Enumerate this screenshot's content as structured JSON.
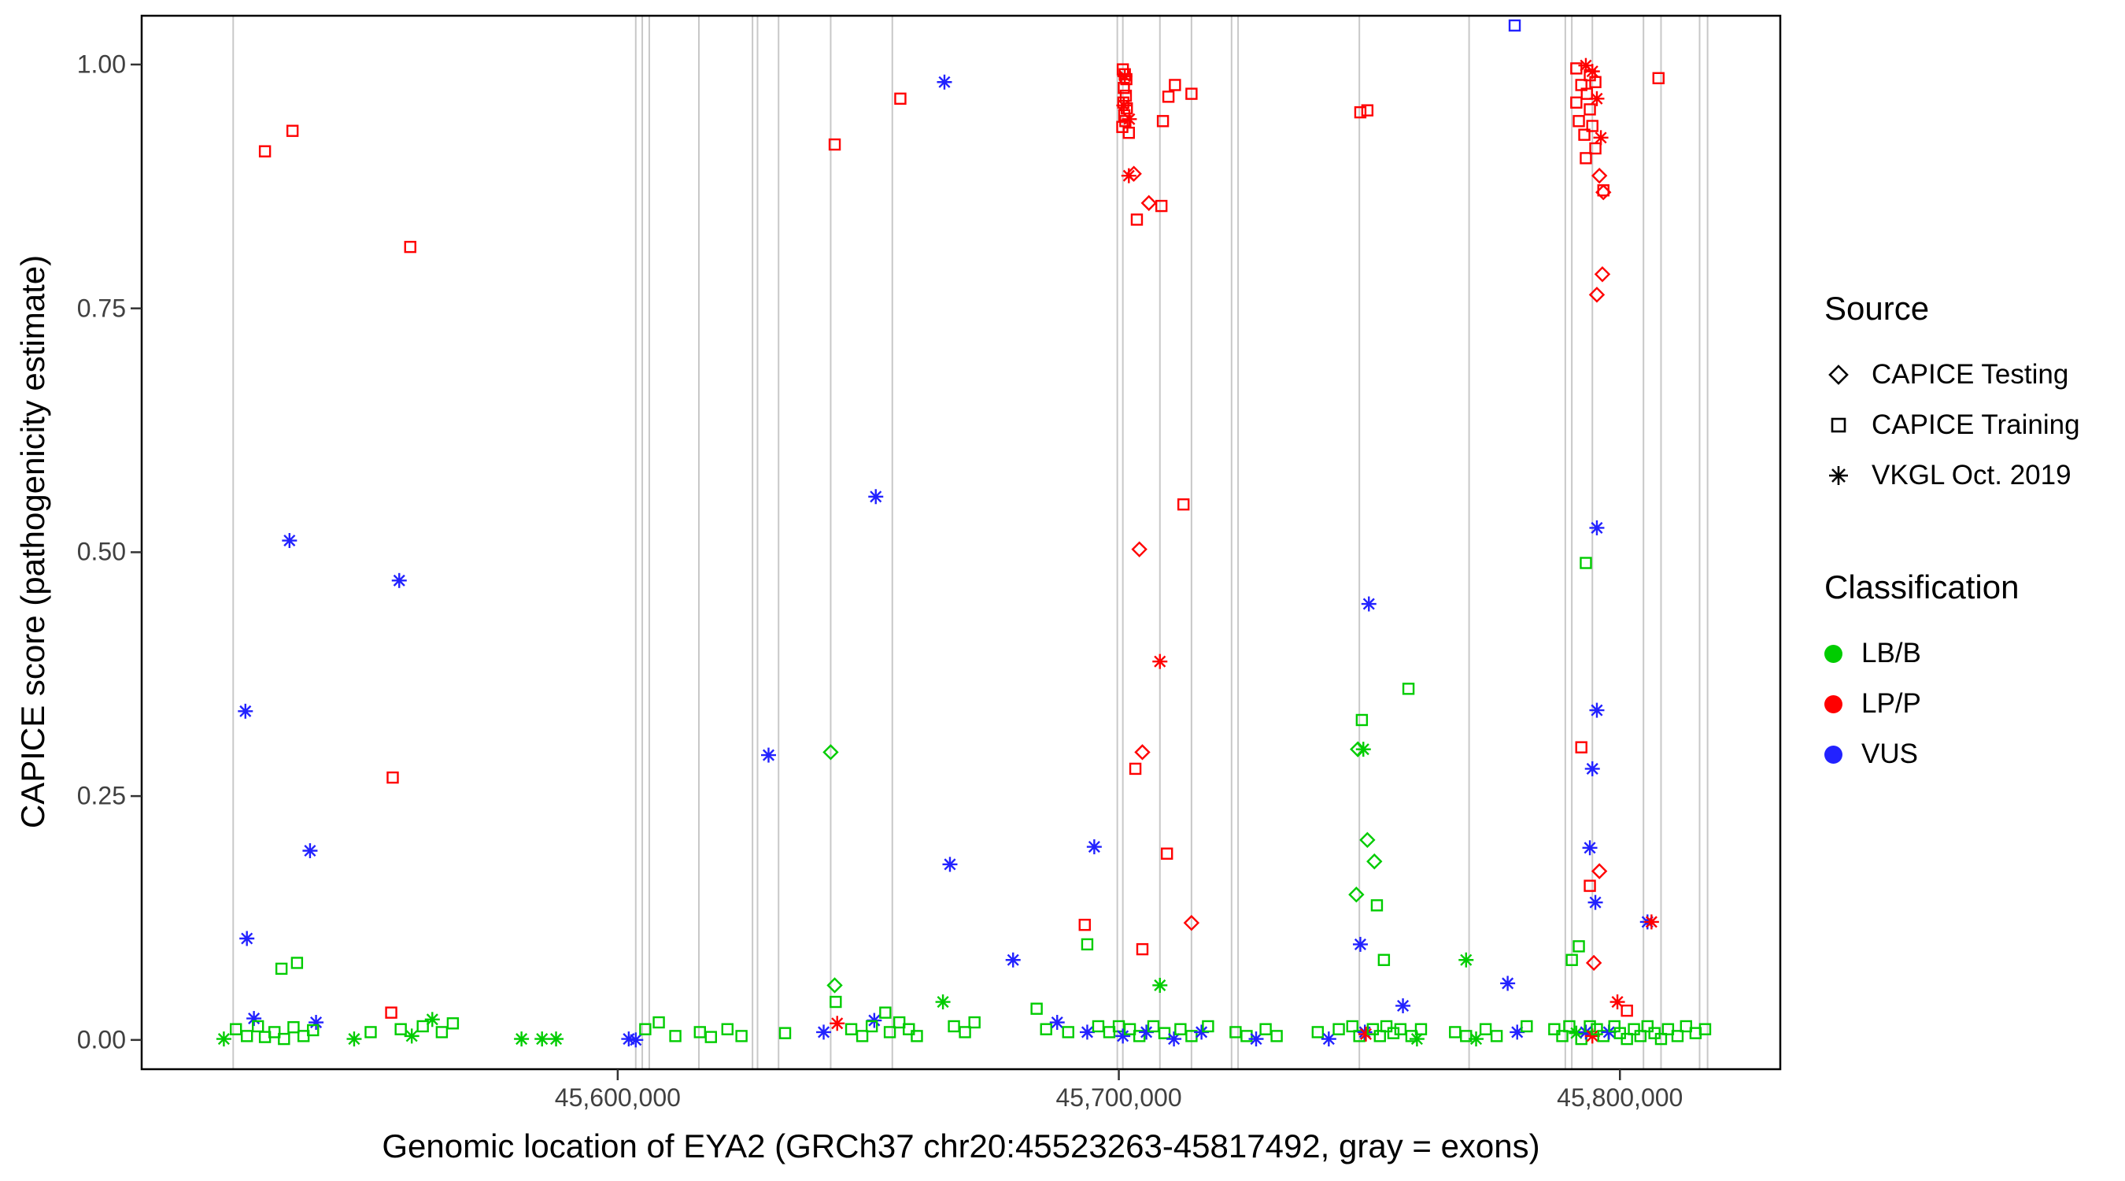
{
  "chart_data": {
    "type": "scatter",
    "title": "",
    "xlabel": "Genomic location of EYA2 (GRCh37 chr20:45523263-45817492, gray = exons)",
    "ylabel": "CAPICE score (pathogenicity estimate)",
    "x_domain": [
      45505000,
      45832000
    ],
    "y_domain": [
      -0.03,
      1.05
    ],
    "x_ticks": [
      {
        "value": 45600000,
        "label": "45,600,000"
      },
      {
        "value": 45700000,
        "label": "45,700,000"
      },
      {
        "value": 45800000,
        "label": "45,800,000"
      }
    ],
    "y_ticks": [
      {
        "value": 0.0,
        "label": "0.00"
      },
      {
        "value": 0.25,
        "label": "0.25"
      },
      {
        "value": 0.5,
        "label": "0.50"
      },
      {
        "value": 0.75,
        "label": "0.75"
      },
      {
        "value": 1.0,
        "label": "1.00"
      }
    ],
    "exon_line_color": "#C8C8C8",
    "exon_lines": [
      45523263,
      45603600,
      45604900,
      45606300,
      45616200,
      45626900,
      45627900,
      45632100,
      45642500,
      45654800,
      45699700,
      45700800,
      45708200,
      45714500,
      45722500,
      45723800,
      45748000,
      45769900,
      45789100,
      45790400,
      45794500,
      45804700,
      45808200,
      45815900,
      45817492
    ],
    "colors": {
      "LB/B": "#00CC00",
      "LP/P": "#FF0000",
      "VUS": "#2222FF"
    },
    "shapes": {
      "CAPICE Testing": "diamond",
      "CAPICE Training": "square",
      "VKGL Oct. 2019": "asterisk"
    },
    "point_format": [
      "genomic_position",
      "capice_score",
      "shape: d=diamond(CAPICE Testing) s=square(CAPICE Training) a=asterisk(VKGL Oct. 2019)",
      "class: g=LB/B r=LP/P b=VUS"
    ],
    "points": [
      [
        45529600,
        0.911,
        "s",
        "r"
      ],
      [
        45535100,
        0.932,
        "s",
        "r"
      ],
      [
        45558600,
        0.813,
        "s",
        "r"
      ],
      [
        45534500,
        0.512,
        "a",
        "b"
      ],
      [
        45556400,
        0.471,
        "a",
        "b"
      ],
      [
        45525700,
        0.337,
        "a",
        "b"
      ],
      [
        45555100,
        0.269,
        "s",
        "r"
      ],
      [
        45538600,
        0.194,
        "a",
        "b"
      ],
      [
        45526000,
        0.104,
        "a",
        "b"
      ],
      [
        45532900,
        0.073,
        "s",
        "g"
      ],
      [
        45536000,
        0.079,
        "s",
        "g"
      ],
      [
        45527400,
        0.022,
        "a",
        "b"
      ],
      [
        45539800,
        0.018,
        "a",
        "b"
      ],
      [
        45521400,
        0.001,
        "a",
        "g"
      ],
      [
        45523800,
        0.011,
        "s",
        "g"
      ],
      [
        45526000,
        0.004,
        "s",
        "g"
      ],
      [
        45528200,
        0.014,
        "s",
        "g"
      ],
      [
        45529600,
        0.003,
        "s",
        "g"
      ],
      [
        45531500,
        0.008,
        "s",
        "g"
      ],
      [
        45533400,
        0.001,
        "s",
        "g"
      ],
      [
        45535300,
        0.013,
        "s",
        "g"
      ],
      [
        45537300,
        0.004,
        "s",
        "g"
      ],
      [
        45539200,
        0.01,
        "s",
        "g"
      ],
      [
        45547400,
        0.001,
        "a",
        "g"
      ],
      [
        45550700,
        0.008,
        "s",
        "g"
      ],
      [
        45554800,
        0.028,
        "s",
        "r"
      ],
      [
        45556700,
        0.011,
        "s",
        "g"
      ],
      [
        45558900,
        0.004,
        "a",
        "g"
      ],
      [
        45561100,
        0.014,
        "s",
        "g"
      ],
      [
        45563000,
        0.021,
        "a",
        "g"
      ],
      [
        45564900,
        0.008,
        "s",
        "g"
      ],
      [
        45567100,
        0.017,
        "s",
        "g"
      ],
      [
        45580800,
        0.001,
        "a",
        "g"
      ],
      [
        45584900,
        0.001,
        "a",
        "g"
      ],
      [
        45587700,
        0.001,
        "a",
        "g"
      ],
      [
        45602200,
        0.001,
        "a",
        "b"
      ],
      [
        45603600,
        0.0,
        "a",
        "b"
      ],
      [
        45605500,
        0.011,
        "s",
        "g"
      ],
      [
        45608200,
        0.018,
        "s",
        "g"
      ],
      [
        45611500,
        0.004,
        "s",
        "g"
      ],
      [
        45616400,
        0.008,
        "s",
        "g"
      ],
      [
        45618600,
        0.003,
        "s",
        "g"
      ],
      [
        45621900,
        0.011,
        "s",
        "g"
      ],
      [
        45624700,
        0.004,
        "s",
        "g"
      ],
      [
        45630100,
        0.292,
        "a",
        "b"
      ],
      [
        45633400,
        0.007,
        "s",
        "g"
      ],
      [
        45643300,
        0.918,
        "s",
        "r"
      ],
      [
        45656400,
        0.965,
        "s",
        "r"
      ],
      [
        45665200,
        0.982,
        "a",
        "b"
      ],
      [
        45651500,
        0.557,
        "a",
        "b"
      ],
      [
        45642500,
        0.295,
        "d",
        "g"
      ],
      [
        45643300,
        0.056,
        "d",
        "g"
      ],
      [
        45643500,
        0.039,
        "s",
        "g"
      ],
      [
        45643800,
        0.017,
        "a",
        "r"
      ],
      [
        45641100,
        0.008,
        "a",
        "b"
      ],
      [
        45651200,
        0.02,
        "a",
        "b"
      ],
      [
        45646600,
        0.011,
        "s",
        "g"
      ],
      [
        45648800,
        0.004,
        "s",
        "g"
      ],
      [
        45650700,
        0.014,
        "s",
        "g"
      ],
      [
        45653400,
        0.028,
        "s",
        "g"
      ],
      [
        45654300,
        0.008,
        "s",
        "g"
      ],
      [
        45656200,
        0.018,
        "s",
        "g"
      ],
      [
        45658100,
        0.011,
        "s",
        "g"
      ],
      [
        45659700,
        0.004,
        "s",
        "g"
      ],
      [
        45664900,
        0.039,
        "a",
        "g"
      ],
      [
        45667100,
        0.014,
        "s",
        "g"
      ],
      [
        45669300,
        0.008,
        "s",
        "g"
      ],
      [
        45671200,
        0.018,
        "s",
        "g"
      ],
      [
        45666300,
        0.18,
        "a",
        "b"
      ],
      [
        45678900,
        0.082,
        "a",
        "b"
      ],
      [
        45683600,
        0.032,
        "s",
        "g"
      ],
      [
        45685500,
        0.011,
        "s",
        "g"
      ],
      [
        45687700,
        0.018,
        "a",
        "b"
      ],
      [
        45689900,
        0.008,
        "s",
        "g"
      ],
      [
        45695100,
        0.198,
        "a",
        "b"
      ],
      [
        45693200,
        0.118,
        "s",
        "r"
      ],
      [
        45693700,
        0.098,
        "s",
        "g"
      ],
      [
        45693700,
        0.008,
        "a",
        "b"
      ],
      [
        45695900,
        0.014,
        "s",
        "g"
      ],
      [
        45700800,
        0.995,
        "s",
        "r"
      ],
      [
        45701200,
        0.99,
        "s",
        "r"
      ],
      [
        45701500,
        0.985,
        "s",
        "r"
      ],
      [
        45701000,
        0.976,
        "s",
        "r"
      ],
      [
        45701400,
        0.968,
        "s",
        "r"
      ],
      [
        45700900,
        0.961,
        "s",
        "r"
      ],
      [
        45701600,
        0.955,
        "s",
        "r"
      ],
      [
        45701100,
        0.948,
        "s",
        "r"
      ],
      [
        45701300,
        0.942,
        "s",
        "r"
      ],
      [
        45700700,
        0.936,
        "s",
        "r"
      ],
      [
        45702000,
        0.93,
        "s",
        "r"
      ],
      [
        45701200,
        0.988,
        "a",
        "r"
      ],
      [
        45701000,
        0.958,
        "a",
        "r"
      ],
      [
        45702100,
        0.944,
        "a",
        "r"
      ],
      [
        45711200,
        0.979,
        "s",
        "r"
      ],
      [
        45714500,
        0.97,
        "s",
        "r"
      ],
      [
        45708800,
        0.942,
        "s",
        "r"
      ],
      [
        45709900,
        0.967,
        "s",
        "r"
      ],
      [
        45703000,
        0.888,
        "d",
        "r"
      ],
      [
        45702000,
        0.886,
        "a",
        "r"
      ],
      [
        45706000,
        0.858,
        "d",
        "r"
      ],
      [
        45703600,
        0.841,
        "s",
        "r"
      ],
      [
        45708500,
        0.855,
        "s",
        "r"
      ],
      [
        45712900,
        0.549,
        "s",
        "r"
      ],
      [
        45704100,
        0.503,
        "d",
        "r"
      ],
      [
        45708200,
        0.388,
        "a",
        "r"
      ],
      [
        45704700,
        0.295,
        "d",
        "r"
      ],
      [
        45703300,
        0.278,
        "s",
        "r"
      ],
      [
        45709600,
        0.191,
        "s",
        "r"
      ],
      [
        45714500,
        0.12,
        "d",
        "r"
      ],
      [
        45704700,
        0.093,
        "s",
        "r"
      ],
      [
        45708200,
        0.056,
        "a",
        "g"
      ],
      [
        45698100,
        0.008,
        "s",
        "g"
      ],
      [
        45700000,
        0.014,
        "s",
        "g"
      ],
      [
        45700800,
        0.004,
        "a",
        "b"
      ],
      [
        45702200,
        0.011,
        "s",
        "g"
      ],
      [
        45704100,
        0.004,
        "s",
        "g"
      ],
      [
        45705500,
        0.008,
        "a",
        "b"
      ],
      [
        45706900,
        0.014,
        "s",
        "g"
      ],
      [
        45709100,
        0.007,
        "s",
        "g"
      ],
      [
        45711000,
        0.001,
        "a",
        "b"
      ],
      [
        45712300,
        0.011,
        "s",
        "g"
      ],
      [
        45714500,
        0.004,
        "s",
        "g"
      ],
      [
        45716500,
        0.008,
        "a",
        "b"
      ],
      [
        45717800,
        0.014,
        "s",
        "g"
      ],
      [
        45723300,
        0.008,
        "s",
        "g"
      ],
      [
        45725500,
        0.004,
        "s",
        "g"
      ],
      [
        45727400,
        0.001,
        "a",
        "b"
      ],
      [
        45729300,
        0.011,
        "s",
        "g"
      ],
      [
        45731500,
        0.004,
        "s",
        "g"
      ],
      [
        45739700,
        0.008,
        "s",
        "g"
      ],
      [
        45741900,
        0.001,
        "a",
        "b"
      ],
      [
        45743900,
        0.011,
        "s",
        "g"
      ],
      [
        45748200,
        0.951,
        "s",
        "r"
      ],
      [
        45749600,
        0.953,
        "s",
        "r"
      ],
      [
        45749900,
        0.447,
        "a",
        "b"
      ],
      [
        45757800,
        0.36,
        "s",
        "g"
      ],
      [
        45748500,
        0.328,
        "s",
        "g"
      ],
      [
        45747700,
        0.298,
        "d",
        "g"
      ],
      [
        45748800,
        0.298,
        "a",
        "g"
      ],
      [
        45749600,
        0.205,
        "d",
        "g"
      ],
      [
        45751000,
        0.183,
        "d",
        "g"
      ],
      [
        45747400,
        0.149,
        "d",
        "g"
      ],
      [
        45751500,
        0.138,
        "s",
        "g"
      ],
      [
        45748200,
        0.098,
        "a",
        "b"
      ],
      [
        45752900,
        0.082,
        "s",
        "g"
      ],
      [
        45756700,
        0.035,
        "a",
        "b"
      ],
      [
        45746600,
        0.014,
        "s",
        "g"
      ],
      [
        45748000,
        0.004,
        "s",
        "g"
      ],
      [
        45749100,
        0.008,
        "a",
        "b"
      ],
      [
        45749300,
        0.006,
        "a",
        "r"
      ],
      [
        45750700,
        0.011,
        "s",
        "g"
      ],
      [
        45752100,
        0.004,
        "s",
        "g"
      ],
      [
        45753400,
        0.014,
        "s",
        "g"
      ],
      [
        45754800,
        0.007,
        "s",
        "g"
      ],
      [
        45756200,
        0.011,
        "s",
        "g"
      ],
      [
        45758400,
        0.004,
        "s",
        "g"
      ],
      [
        45760300,
        0.011,
        "s",
        "g"
      ],
      [
        45759500,
        0.001,
        "a",
        "g"
      ],
      [
        45769300,
        0.082,
        "a",
        "g"
      ],
      [
        45777600,
        0.058,
        "a",
        "b"
      ],
      [
        45767100,
        0.008,
        "s",
        "g"
      ],
      [
        45769300,
        0.004,
        "s",
        "g"
      ],
      [
        45771300,
        0.001,
        "a",
        "g"
      ],
      [
        45773200,
        0.011,
        "s",
        "g"
      ],
      [
        45775400,
        0.004,
        "s",
        "g"
      ],
      [
        45779500,
        0.008,
        "a",
        "b"
      ],
      [
        45781400,
        0.014,
        "s",
        "g"
      ],
      [
        45779000,
        1.04,
        "s",
        "b"
      ],
      [
        45791300,
        0.996,
        "s",
        "r"
      ],
      [
        45793200,
        0.999,
        "a",
        "r"
      ],
      [
        45794000,
        0.989,
        "s",
        "r"
      ],
      [
        45795100,
        0.982,
        "s",
        "r"
      ],
      [
        45794500,
        0.993,
        "a",
        "r"
      ],
      [
        45792300,
        0.979,
        "s",
        "r"
      ],
      [
        45793400,
        0.97,
        "s",
        "r"
      ],
      [
        45791300,
        0.961,
        "s",
        "r"
      ],
      [
        45795400,
        0.965,
        "a",
        "r"
      ],
      [
        45794000,
        0.954,
        "s",
        "r"
      ],
      [
        45791800,
        0.942,
        "s",
        "r"
      ],
      [
        45794500,
        0.937,
        "s",
        "r"
      ],
      [
        45792900,
        0.928,
        "s",
        "r"
      ],
      [
        45796200,
        0.925,
        "a",
        "r"
      ],
      [
        45795100,
        0.914,
        "s",
        "r"
      ],
      [
        45793200,
        0.904,
        "s",
        "r"
      ],
      [
        45795900,
        0.886,
        "d",
        "r"
      ],
      [
        45796700,
        0.869,
        "d",
        "r"
      ],
      [
        45796700,
        0.871,
        "s",
        "r"
      ],
      [
        45796500,
        0.785,
        "d",
        "r"
      ],
      [
        45795400,
        0.764,
        "d",
        "r"
      ],
      [
        45807700,
        0.986,
        "s",
        "r"
      ],
      [
        45795400,
        0.525,
        "a",
        "b"
      ],
      [
        45793200,
        0.489,
        "s",
        "g"
      ],
      [
        45795400,
        0.338,
        "a",
        "b"
      ],
      [
        45792300,
        0.3,
        "s",
        "r"
      ],
      [
        45794500,
        0.278,
        "a",
        "b"
      ],
      [
        45794000,
        0.197,
        "a",
        "b"
      ],
      [
        45795900,
        0.173,
        "d",
        "r"
      ],
      [
        45794000,
        0.158,
        "s",
        "r"
      ],
      [
        45795100,
        0.141,
        "a",
        "b"
      ],
      [
        45805500,
        0.121,
        "a",
        "b"
      ],
      [
        45806300,
        0.121,
        "a",
        "r"
      ],
      [
        45794800,
        0.079,
        "d",
        "r"
      ],
      [
        45791800,
        0.096,
        "s",
        "g"
      ],
      [
        45790400,
        0.082,
        "s",
        "g"
      ],
      [
        45799500,
        0.039,
        "a",
        "r"
      ],
      [
        45801400,
        0.03,
        "s",
        "r"
      ],
      [
        45786900,
        0.011,
        "s",
        "g"
      ],
      [
        45788500,
        0.004,
        "s",
        "g"
      ],
      [
        45789900,
        0.014,
        "s",
        "g"
      ],
      [
        45791300,
        0.007,
        "a",
        "g"
      ],
      [
        45792300,
        0.001,
        "s",
        "g"
      ],
      [
        45793200,
        0.008,
        "a",
        "b"
      ],
      [
        45794000,
        0.014,
        "s",
        "g"
      ],
      [
        45794500,
        0.004,
        "a",
        "r"
      ],
      [
        45795400,
        0.011,
        "s",
        "g"
      ],
      [
        45796700,
        0.004,
        "s",
        "g"
      ],
      [
        45797800,
        0.008,
        "a",
        "b"
      ],
      [
        45798900,
        0.014,
        "s",
        "g"
      ],
      [
        45800000,
        0.007,
        "s",
        "g"
      ],
      [
        45801400,
        0.001,
        "s",
        "g"
      ],
      [
        45802800,
        0.011,
        "s",
        "g"
      ],
      [
        45804100,
        0.004,
        "s",
        "g"
      ],
      [
        45805500,
        0.014,
        "s",
        "g"
      ],
      [
        45806900,
        0.007,
        "s",
        "g"
      ],
      [
        45808200,
        0.001,
        "s",
        "g"
      ],
      [
        45809600,
        0.011,
        "s",
        "g"
      ],
      [
        45811500,
        0.004,
        "s",
        "g"
      ],
      [
        45813200,
        0.014,
        "s",
        "g"
      ],
      [
        45815100,
        0.007,
        "s",
        "g"
      ],
      [
        45817000,
        0.011,
        "s",
        "g"
      ]
    ]
  },
  "legend": {
    "source_title": "Source",
    "source_items": [
      {
        "label": "CAPICE Testing",
        "shape": "diamond"
      },
      {
        "label": "CAPICE Training",
        "shape": "square"
      },
      {
        "label": "VKGL Oct. 2019",
        "shape": "asterisk"
      }
    ],
    "classification_title": "Classification",
    "classification_items": [
      {
        "label": "LB/B",
        "color": "#00CC00"
      },
      {
        "label": "LP/P",
        "color": "#FF0000"
      },
      {
        "label": "VUS",
        "color": "#2222FF"
      }
    ]
  }
}
